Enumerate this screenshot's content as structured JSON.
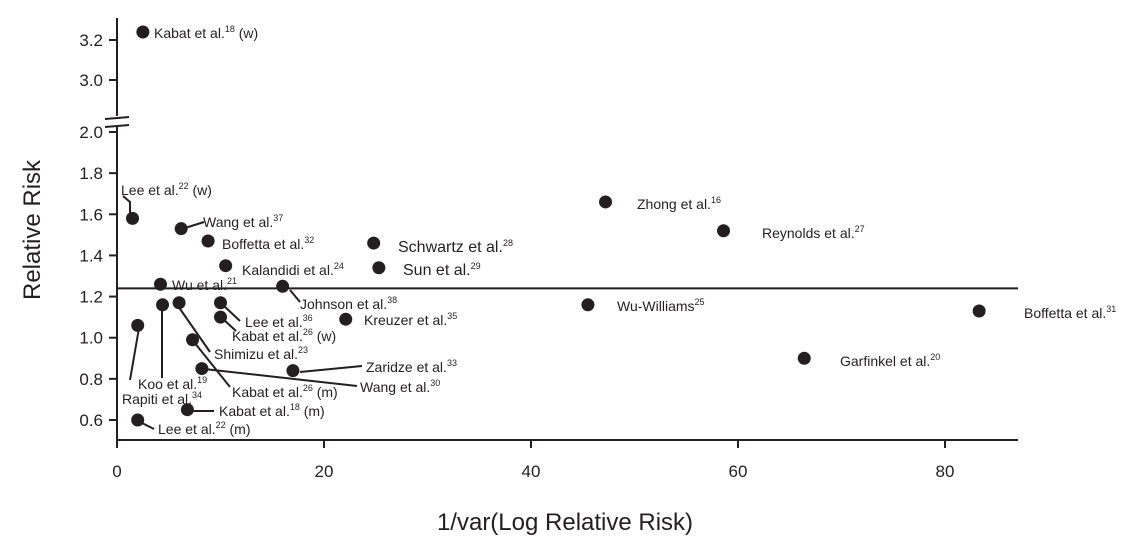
{
  "chart_data": {
    "type": "scatter",
    "xlabel": "1/var(Log Relative Risk)",
    "ylabel": "Relative Risk",
    "xlim": [
      0,
      87
    ],
    "ylim": [
      0.5,
      3.3
    ],
    "y_axis_break": [
      2.0,
      3.0
    ],
    "x_ticks": [
      "0",
      "20",
      "40",
      "60",
      "80"
    ],
    "y_ticks": [
      "0.6",
      "0.8",
      "1.0",
      "1.2",
      "1.4",
      "1.6",
      "1.8",
      "2.0",
      "3.0",
      "3.2"
    ],
    "reference_line_y": 1.24,
    "grid": false,
    "points": [
      {
        "name": "Kabat et al.",
        "ref": "18",
        "suffix": " (w)",
        "x": 2.5,
        "y": 3.24
      },
      {
        "name": "Lee et al.",
        "ref": "22",
        "suffix": " (w)",
        "x": 1.5,
        "y": 1.58
      },
      {
        "name": "Wang et al.",
        "ref": "37",
        "suffix": "",
        "x": 6.2,
        "y": 1.53
      },
      {
        "name": "Boffetta et al.",
        "ref": "32",
        "suffix": "",
        "x": 8.8,
        "y": 1.47
      },
      {
        "name": "Kalandidi et al.",
        "ref": "24",
        "suffix": "",
        "x": 10.5,
        "y": 1.35
      },
      {
        "name": "Schwartz et al.",
        "ref": "28",
        "suffix": "",
        "x": 24.8,
        "y": 1.46
      },
      {
        "name": "Sun et al.",
        "ref": "29",
        "suffix": "",
        "x": 25.3,
        "y": 1.34
      },
      {
        "name": "Zhong et al.",
        "ref": "16",
        "suffix": "",
        "x": 47.2,
        "y": 1.66
      },
      {
        "name": "Reynolds et al.",
        "ref": "27",
        "suffix": "",
        "x": 58.6,
        "y": 1.52
      },
      {
        "name": "Wu et al.",
        "ref": "21",
        "suffix": "",
        "x": 4.2,
        "y": 1.26
      },
      {
        "name": "Johnson et al.",
        "ref": "38",
        "suffix": "",
        "x": 16.0,
        "y": 1.25
      },
      {
        "name": "Lee et al.",
        "ref": "36",
        "suffix": "",
        "x": 10.0,
        "y": 1.17
      },
      {
        "name": "Kabat et al.",
        "ref": "26",
        "suffix": " (w)",
        "x": 10.0,
        "y": 1.1
      },
      {
        "name": "Kreuzer et al.",
        "ref": "35",
        "suffix": "",
        "x": 22.1,
        "y": 1.09
      },
      {
        "name": "Wu-Williams",
        "ref": "25",
        "suffix": "",
        "x": 45.5,
        "y": 1.16
      },
      {
        "name": "Boffetta et al.",
        "ref": "31",
        "suffix": "",
        "x": 83.3,
        "y": 1.13
      },
      {
        "name": "Shimizu et al.",
        "ref": "23",
        "suffix": "",
        "x": 6.0,
        "y": 1.17
      },
      {
        "name": "Koo et al.",
        "ref": "19",
        "suffix": "",
        "x": 4.4,
        "y": 1.16
      },
      {
        "name": "Rapiti et al.",
        "ref": "34",
        "suffix": "",
        "x": 2.0,
        "y": 1.06
      },
      {
        "name": "Kabat et al.",
        "ref": "26",
        "suffix": " (m)",
        "x": 7.3,
        "y": 0.99
      },
      {
        "name": "Zaridze et al.",
        "ref": "33",
        "suffix": "",
        "x": 17.0,
        "y": 0.84
      },
      {
        "name": "Wang et al.",
        "ref": "30",
        "suffix": "",
        "x": 8.2,
        "y": 0.85
      },
      {
        "name": "Garfinkel et al.",
        "ref": "20",
        "suffix": "",
        "x": 66.4,
        "y": 0.9
      },
      {
        "name": "Kabat et al.",
        "ref": "18",
        "suffix": " (m)",
        "x": 6.8,
        "y": 0.65
      },
      {
        "name": "Lee et al.",
        "ref": "22",
        "suffix": " (m)",
        "x": 2.0,
        "y": 0.6
      }
    ]
  }
}
